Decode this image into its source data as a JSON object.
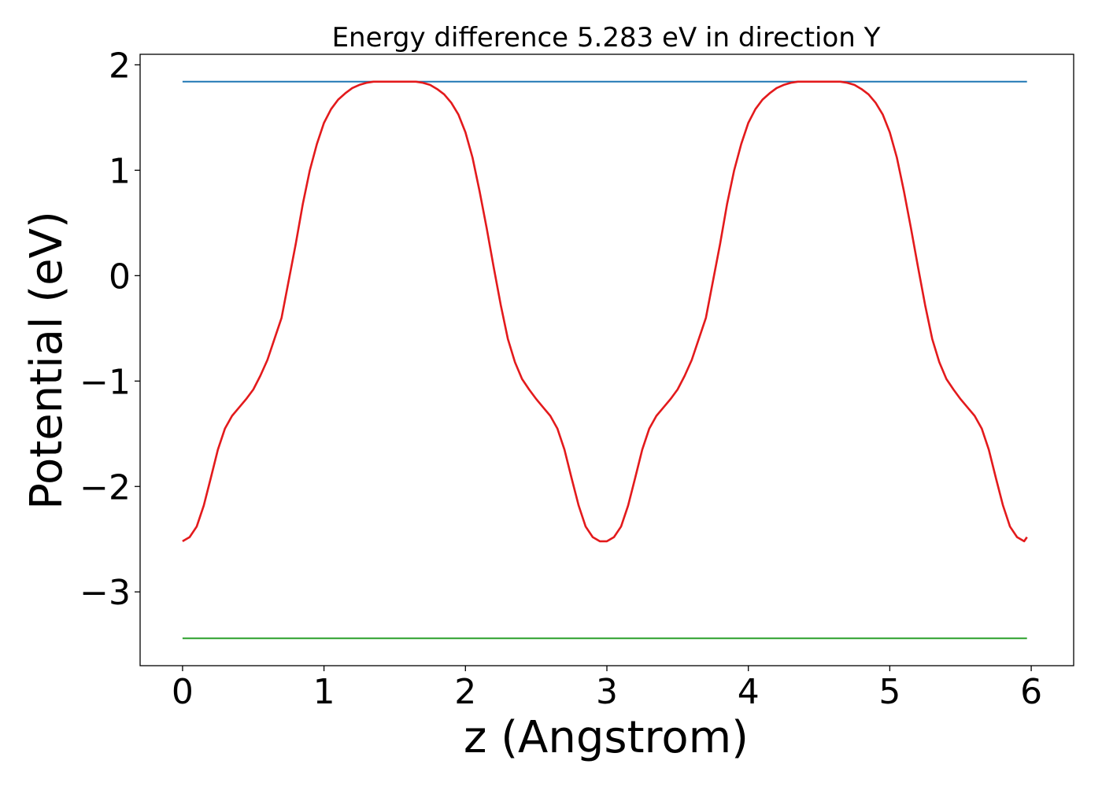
{
  "chart_data": {
    "type": "line",
    "title": "Energy difference 5.283 eV in direction Y",
    "xlabel": "z (Angstrom)",
    "ylabel": "Potential (eV)",
    "xlim": [
      -0.3,
      6.3
    ],
    "ylim": [
      -3.7,
      2.1
    ],
    "xticks": [
      0,
      1,
      2,
      3,
      4,
      5,
      6
    ],
    "xtick_labels": [
      "0",
      "1",
      "2",
      "3",
      "4",
      "5",
      "6"
    ],
    "yticks": [
      -3,
      -2,
      -1,
      0,
      1,
      2
    ],
    "ytick_labels": [
      "−3",
      "−2",
      "−1",
      "0",
      "1",
      "2"
    ],
    "grid": false,
    "legend": "none",
    "series": [
      {
        "color": "#1f77b4",
        "x": [
          0,
          5.97
        ],
        "y": [
          1.84,
          1.84
        ]
      },
      {
        "color": "#2ca02c",
        "x": [
          0,
          5.97
        ],
        "y": [
          -3.44,
          -3.44
        ]
      },
      {
        "color": "#e31a1c",
        "x": [
          0,
          0.05,
          0.1,
          0.15,
          0.2,
          0.25,
          0.3,
          0.35,
          0.4,
          0.45,
          0.5,
          0.55,
          0.6,
          0.65,
          0.7,
          0.75,
          0.8,
          0.85,
          0.9,
          0.95,
          1.0,
          1.05,
          1.1,
          1.15,
          1.2,
          1.25,
          1.3,
          1.35,
          1.4,
          1.45,
          1.5,
          1.55,
          1.6,
          1.65,
          1.7,
          1.75,
          1.8,
          1.85,
          1.9,
          1.95,
          2.0,
          2.05,
          2.1,
          2.15,
          2.2,
          2.25,
          2.3,
          2.35,
          2.4,
          2.45,
          2.5,
          2.55,
          2.6,
          2.65,
          2.7,
          2.75,
          2.8,
          2.85,
          2.9,
          2.95,
          3.0,
          3.05,
          3.1,
          3.15,
          3.2,
          3.25,
          3.3,
          3.35,
          3.4,
          3.45,
          3.5,
          3.55,
          3.6,
          3.65,
          3.7,
          3.75,
          3.8,
          3.85,
          3.9,
          3.95,
          4.0,
          4.05,
          4.1,
          4.15,
          4.2,
          4.25,
          4.3,
          4.35,
          4.4,
          4.45,
          4.5,
          4.55,
          4.6,
          4.65,
          4.7,
          4.75,
          4.8,
          4.85,
          4.9,
          4.95,
          5.0,
          5.05,
          5.1,
          5.15,
          5.2,
          5.25,
          5.3,
          5.35,
          5.4,
          5.45,
          5.5,
          5.55,
          5.6,
          5.65,
          5.7,
          5.75,
          5.8,
          5.85,
          5.9,
          5.95,
          5.97
        ],
        "y": [
          -2.52,
          -2.48,
          -2.38,
          -2.18,
          -1.92,
          -1.65,
          -1.45,
          -1.33,
          -1.25,
          -1.17,
          -1.08,
          -0.95,
          -0.8,
          -0.6,
          -0.4,
          -0.05,
          0.3,
          0.68,
          1.0,
          1.25,
          1.45,
          1.58,
          1.67,
          1.73,
          1.78,
          1.81,
          1.83,
          1.84,
          1.84,
          1.84,
          1.84,
          1.84,
          1.84,
          1.84,
          1.83,
          1.81,
          1.77,
          1.72,
          1.64,
          1.53,
          1.36,
          1.12,
          0.8,
          0.45,
          0.08,
          -0.28,
          -0.6,
          -0.82,
          -0.98,
          -1.08,
          -1.17,
          -1.25,
          -1.33,
          -1.45,
          -1.65,
          -1.92,
          -2.18,
          -2.38,
          -2.48,
          -2.52,
          -2.52,
          -2.48,
          -2.38,
          -2.18,
          -1.92,
          -1.65,
          -1.45,
          -1.33,
          -1.25,
          -1.17,
          -1.08,
          -0.95,
          -0.8,
          -0.6,
          -0.4,
          -0.05,
          0.3,
          0.68,
          1.0,
          1.25,
          1.45,
          1.58,
          1.67,
          1.73,
          1.78,
          1.81,
          1.83,
          1.84,
          1.84,
          1.84,
          1.84,
          1.84,
          1.84,
          1.84,
          1.83,
          1.81,
          1.77,
          1.72,
          1.64,
          1.53,
          1.36,
          1.12,
          0.8,
          0.45,
          0.08,
          -0.28,
          -0.6,
          -0.82,
          -0.98,
          -1.08,
          -1.17,
          -1.25,
          -1.33,
          -1.45,
          -1.65,
          -1.92,
          -2.18,
          -2.38,
          -2.48,
          -2.52,
          -2.48
        ]
      }
    ]
  }
}
